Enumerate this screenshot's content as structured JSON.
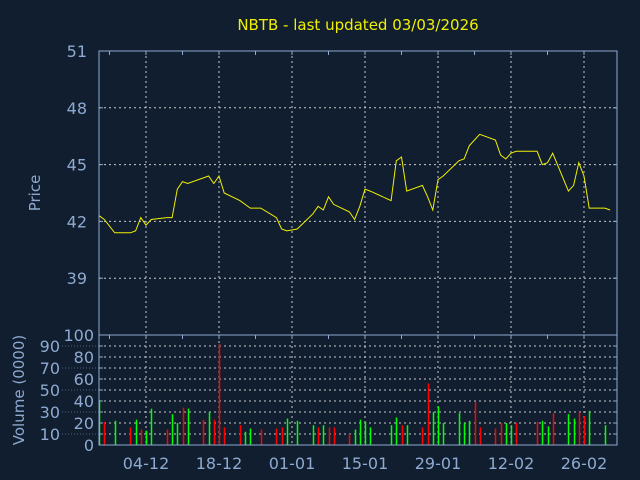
{
  "colors": {
    "background": "#111e2f",
    "axis": "#8eaad0",
    "grid": "#c8c8c8",
    "price_line": "#f0f000",
    "up": "#00ff00",
    "down": "#ff0000",
    "title": "#f0f000"
  },
  "chart_data": [
    {
      "type": "line",
      "title": "NBTB - last updated 03/03/2026",
      "ylabel": "Price",
      "ylim": [
        36,
        51
      ],
      "yticks": [
        39,
        42,
        45,
        48,
        51
      ],
      "grid": true,
      "x": [
        "2025-11-25",
        "2025-11-26",
        "2025-11-28",
        "2025-12-01",
        "2025-12-02",
        "2025-12-03",
        "2025-12-04",
        "2025-12-05",
        "2025-12-08",
        "2025-12-09",
        "2025-12-10",
        "2025-12-11",
        "2025-12-12",
        "2025-12-15",
        "2025-12-16",
        "2025-12-17",
        "2025-12-18",
        "2025-12-19",
        "2025-12-22",
        "2025-12-23",
        "2025-12-24",
        "2025-12-26",
        "2025-12-29",
        "2025-12-30",
        "2025-12-31",
        "2026-01-02",
        "2026-01-05",
        "2026-01-06",
        "2026-01-07",
        "2026-01-08",
        "2026-01-09",
        "2026-01-12",
        "2026-01-13",
        "2026-01-14",
        "2026-01-15",
        "2026-01-16",
        "2026-01-20",
        "2026-01-21",
        "2026-01-22",
        "2026-01-23",
        "2026-01-26",
        "2026-01-27",
        "2026-01-28",
        "2026-01-29",
        "2026-01-30",
        "2026-02-02",
        "2026-02-03",
        "2026-02-04",
        "2026-02-05",
        "2026-02-06",
        "2026-02-09",
        "2026-02-10",
        "2026-02-11",
        "2026-02-12",
        "2026-02-13",
        "2026-02-17",
        "2026-02-18",
        "2026-02-19",
        "2026-02-20",
        "2026-02-23",
        "2026-02-24",
        "2026-02-25",
        "2026-02-26",
        "2026-02-27",
        "2026-03-02",
        "2026-03-03"
      ],
      "values": [
        42.3,
        42.1,
        41.4,
        41.4,
        41.5,
        42.2,
        41.8,
        42.1,
        42.2,
        42.2,
        43.7,
        44.1,
        44.0,
        44.3,
        44.4,
        44.0,
        44.4,
        43.5,
        43.1,
        42.9,
        42.7,
        42.7,
        42.2,
        41.6,
        41.5,
        41.6,
        42.4,
        42.8,
        42.6,
        43.3,
        42.9,
        42.5,
        42.1,
        42.8,
        43.7,
        43.6,
        43.1,
        45.2,
        45.4,
        43.6,
        43.9,
        43.3,
        42.6,
        44.2,
        44.4,
        45.2,
        45.3,
        46.0,
        46.3,
        46.6,
        46.3,
        45.5,
        45.3,
        45.6,
        45.7,
        45.7,
        45.0,
        45.1,
        45.6,
        43.6,
        43.9,
        45.1,
        44.4,
        42.7,
        42.7,
        42.6
      ]
    },
    {
      "type": "bar",
      "ylabel": "Volume (0000)",
      "ylim": [
        0,
        100
      ],
      "yticks": [
        0,
        10,
        20,
        30,
        40,
        50,
        60,
        70,
        80,
        90,
        100
      ],
      "xticks": [
        {
          "date": "2025-12-04",
          "label": "04-12"
        },
        {
          "date": "2025-12-18",
          "label": "18-12"
        },
        {
          "date": "2026-01-01",
          "label": "01-01"
        },
        {
          "date": "2026-01-15",
          "label": "15-01"
        },
        {
          "date": "2026-01-29",
          "label": "29-01"
        },
        {
          "date": "2026-02-12",
          "label": "12-02"
        },
        {
          "date": "2026-02-26",
          "label": "26-02"
        }
      ],
      "grid": true,
      "values": [
        41,
        21,
        22,
        16,
        23,
        14,
        13,
        33,
        14,
        28,
        20,
        34,
        33,
        23,
        30,
        23,
        92,
        16,
        18,
        12,
        15,
        14,
        15,
        16,
        24,
        22,
        18,
        16,
        18,
        16,
        16,
        10,
        14,
        23,
        21,
        16,
        18,
        25,
        18,
        18,
        16,
        56,
        30,
        35,
        20,
        29,
        20,
        22,
        39,
        16,
        15,
        20,
        20,
        18,
        20,
        21,
        22,
        17,
        29,
        28,
        24,
        30,
        26,
        31,
        18,
        0
      ],
      "direction": [
        "up",
        "down",
        "up",
        "down",
        "up",
        "down",
        "up",
        "up",
        "down",
        "up",
        "up",
        "down",
        "up",
        "down",
        "up",
        "down",
        "down",
        "down",
        "down",
        "up",
        "up",
        "down",
        "down",
        "down",
        "up",
        "up",
        "up",
        "down",
        "up",
        "down",
        "down",
        "down",
        "up",
        "up",
        "up",
        "up",
        "up",
        "up",
        "down",
        "up",
        "down",
        "down",
        "up",
        "up",
        "up",
        "up",
        "up",
        "up",
        "down",
        "down",
        "down",
        "down",
        "up",
        "up",
        "down",
        "down",
        "up",
        "up",
        "down",
        "up",
        "up",
        "down",
        "down",
        "up",
        "up",
        "up"
      ]
    }
  ]
}
